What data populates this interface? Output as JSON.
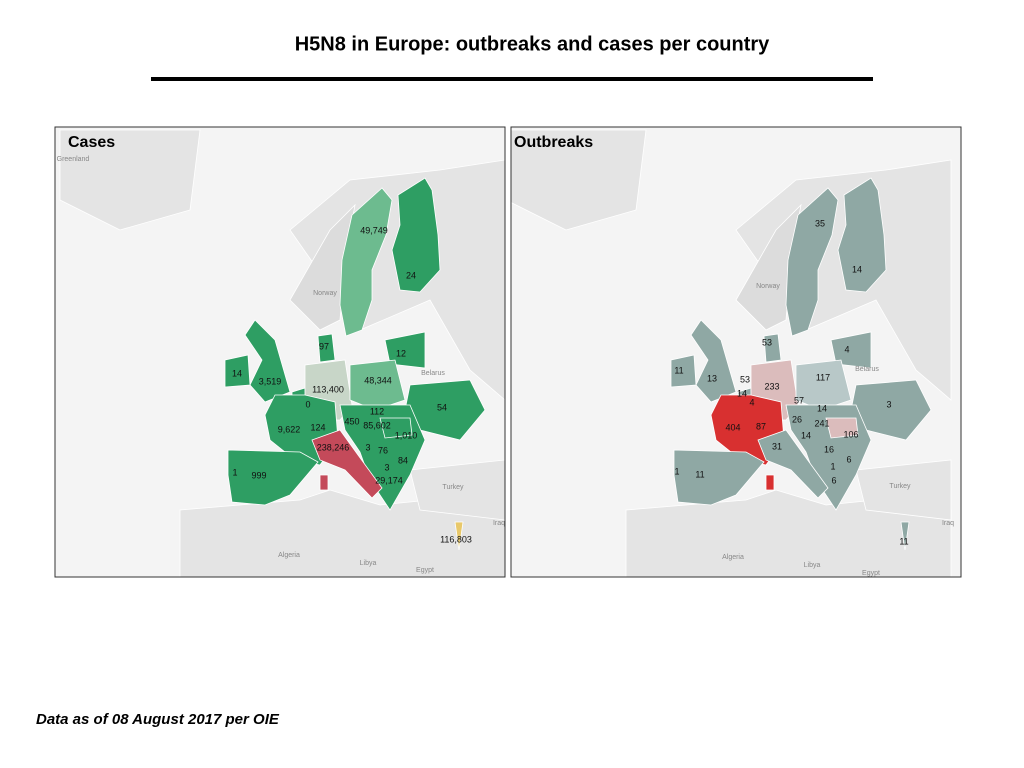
{
  "header": {
    "title": "H5N8 in Europe: outbreaks and cases per country"
  },
  "panels": [
    {
      "title": "Cases",
      "labels": [
        "49,749",
        "24",
        "97",
        "12",
        "14",
        "3,519",
        "113,400",
        "48,344",
        "0",
        "54",
        "112",
        "450",
        "85,602",
        "9,622",
        "124",
        "1,010",
        "238,246",
        "3",
        "76",
        "84",
        "3",
        "1",
        "999",
        "29,174",
        "116,803"
      ],
      "places": [
        "Greenland",
        "Norway",
        "Belarus",
        "Turkey",
        "Iraq",
        "Algeria",
        "Libya",
        "Egypt"
      ]
    },
    {
      "title": "Outbreaks",
      "labels": [
        "35",
        "14",
        "53",
        "4",
        "11",
        "13",
        "53",
        "117",
        "233",
        "14",
        "4",
        "57",
        "3",
        "14",
        "26",
        "241",
        "404",
        "87",
        "106",
        "14",
        "31",
        "16",
        "6",
        "1",
        "1",
        "11",
        "6",
        "11"
      ],
      "places": [
        "Norway",
        "Belarus",
        "Turkey",
        "Iraq",
        "Algeria",
        "Libya",
        "Egypt"
      ]
    }
  ],
  "footer": {
    "note": "Data as of 08 August 2017 per OIE"
  }
}
